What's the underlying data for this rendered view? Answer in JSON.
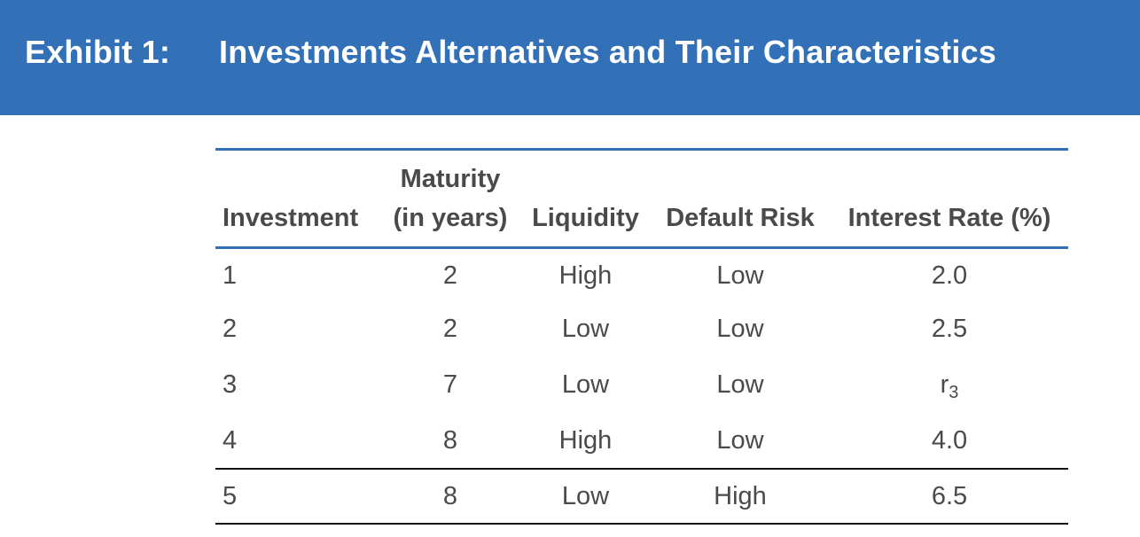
{
  "exhibit": {
    "label": "Exhibit 1:",
    "title": "Investments Alternatives and Their Characteristics"
  },
  "table": {
    "headers": {
      "investment": "Investment",
      "maturity_line1": "Maturity",
      "maturity_line2": "(in years)",
      "liquidity": "Liquidity",
      "default_risk": "Default Risk",
      "interest_rate": "Interest Rate (%)"
    },
    "rows": [
      {
        "investment": "1",
        "maturity": "2",
        "liquidity": "High",
        "default_risk": "Low",
        "interest_rate": "2.0"
      },
      {
        "investment": "2",
        "maturity": "2",
        "liquidity": "Low",
        "default_risk": "Low",
        "interest_rate": "2.5"
      },
      {
        "investment": "3",
        "maturity": "7",
        "liquidity": "Low",
        "default_risk": "Low",
        "interest_rate_base": "r",
        "interest_rate_sub": "3"
      },
      {
        "investment": "4",
        "maturity": "8",
        "liquidity": "High",
        "default_risk": "Low",
        "interest_rate": "4.0"
      },
      {
        "investment": "5",
        "maturity": "8",
        "liquidity": "Low",
        "default_risk": "High",
        "interest_rate": "6.5"
      }
    ]
  },
  "colors": {
    "banner": "#3270b8",
    "text": "#4a4a4a",
    "rule": "#3270b8"
  }
}
